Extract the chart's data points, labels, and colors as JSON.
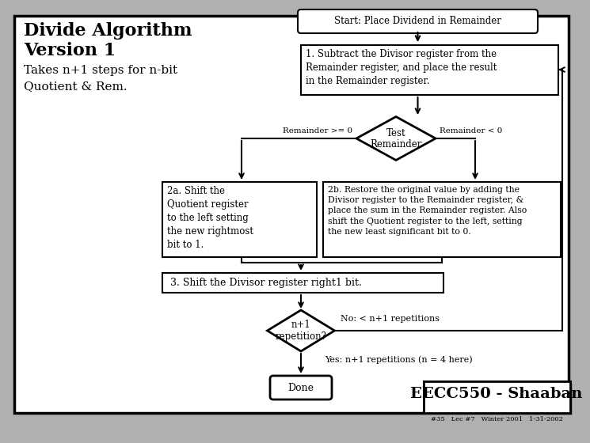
{
  "title_line1": "Divide Algorithm",
  "title_line2": "Version 1",
  "subtitle": "Takes n+1 steps for n-bit\nQuotient & Rem.",
  "start_text": "Start: Place Dividend in Remainder",
  "box1_text": "1. Subtract the Divisor register from the\nRemainder register, and place the result\nin the Remainder register.",
  "diamond_text": "Test\nRemainder",
  "rem_ge0": "Remainder >= 0",
  "rem_lt0": "Remainder < 0",
  "box2a_text": "2a. Shift the\nQuotient register\nto the left setting\nthe new rightmost\nbit to 1.",
  "box2b_text": "2b. Restore the original value by adding the\nDivisor register to the Remainder register, &\nplace the sum in the Remainder register. Also\nshift the Quotient register to the left, setting\nthe new least significant bit to 0.",
  "box3_text": "3. Shift the Divisor register right1 bit.",
  "diamond2_text": "n+1\nrepetition?",
  "no_text": "No: < n+1 repetitions",
  "yes_text": "Yes: n+1 repetitions (n = 4 here)",
  "done_text": "Done",
  "eecc_text": "EECC550 - Shaaban",
  "footer_text": "#35   Lec #7   Winter 2001   1-31-2002",
  "bg_outer": "#b0b0b0",
  "bg_inner": "#ffffff"
}
